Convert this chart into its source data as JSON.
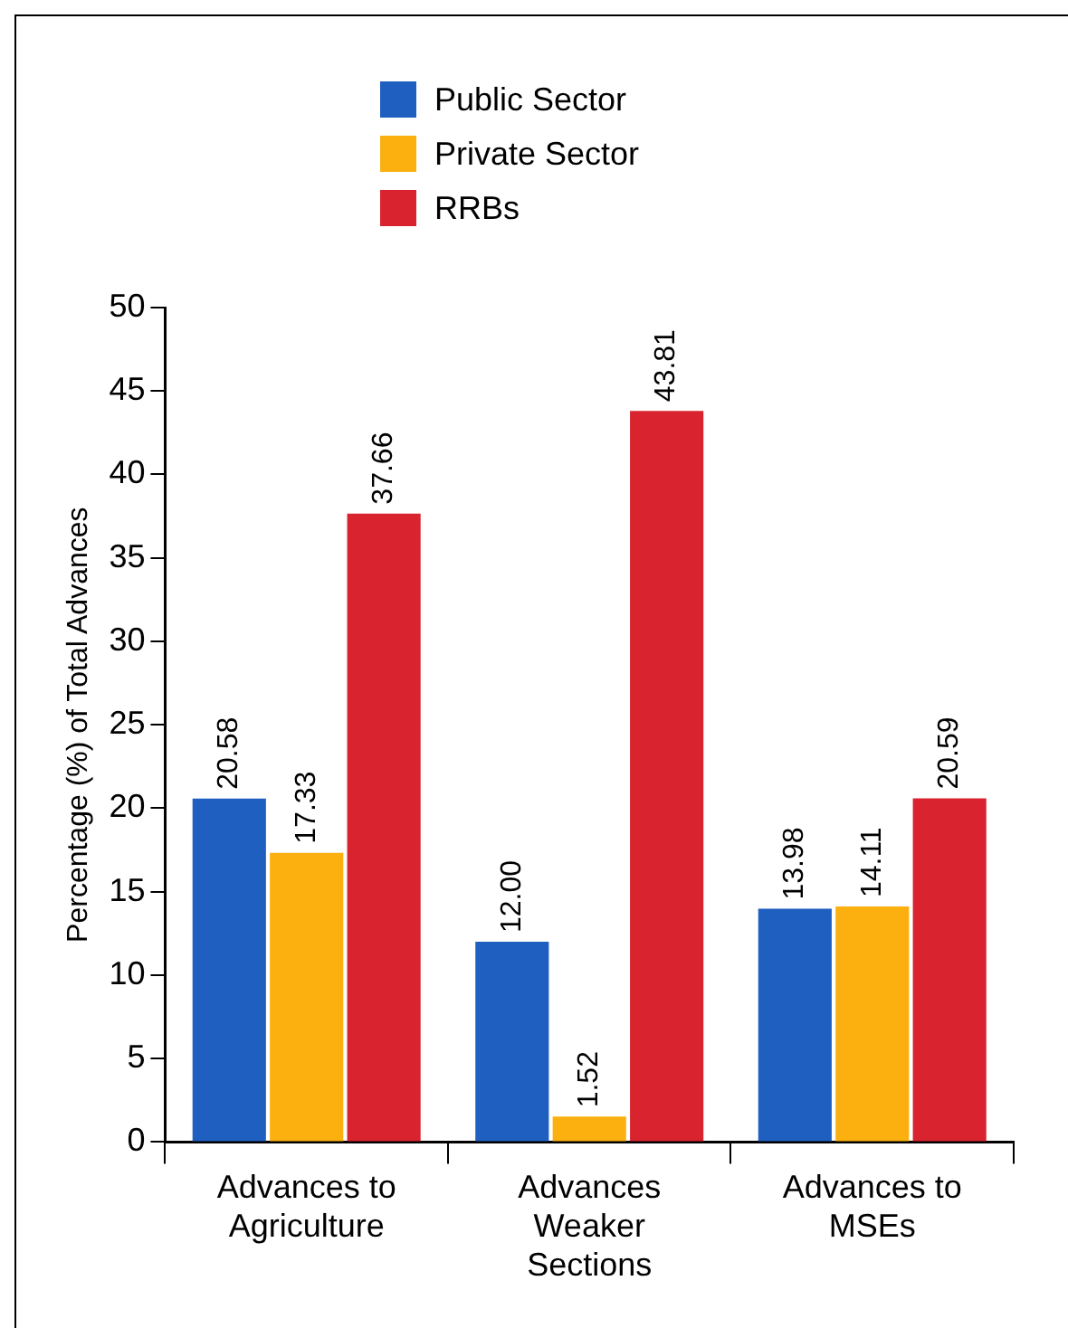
{
  "chart_data": {
    "type": "bar",
    "ylabel": "Percentage (%) of Total Advances",
    "categories": [
      "Advances to\nAgriculture",
      "Advances\nWeaker\nSections",
      "Advances to\nMSEs"
    ],
    "series": [
      {
        "name": "Public Sector",
        "color": "#1f5fbf",
        "values": [
          20.58,
          12.0,
          13.98
        ],
        "value_labels": [
          "20.58",
          "12.00",
          "13.98"
        ]
      },
      {
        "name": "Private Sector",
        "color": "#fbb010",
        "values": [
          17.33,
          1.52,
          14.11
        ],
        "value_labels": [
          "17.33",
          "1.52",
          "14.11"
        ]
      },
      {
        "name": "RRBs",
        "color": "#d9232e",
        "values": [
          37.66,
          43.81,
          20.59
        ],
        "value_labels": [
          "37.66",
          "43.81",
          "20.59"
        ]
      }
    ],
    "ylim": [
      0,
      50
    ],
    "yticks": [
      0,
      5,
      10,
      15,
      20,
      25,
      30,
      35,
      40,
      45,
      50
    ],
    "grid": false,
    "legend": "top"
  }
}
